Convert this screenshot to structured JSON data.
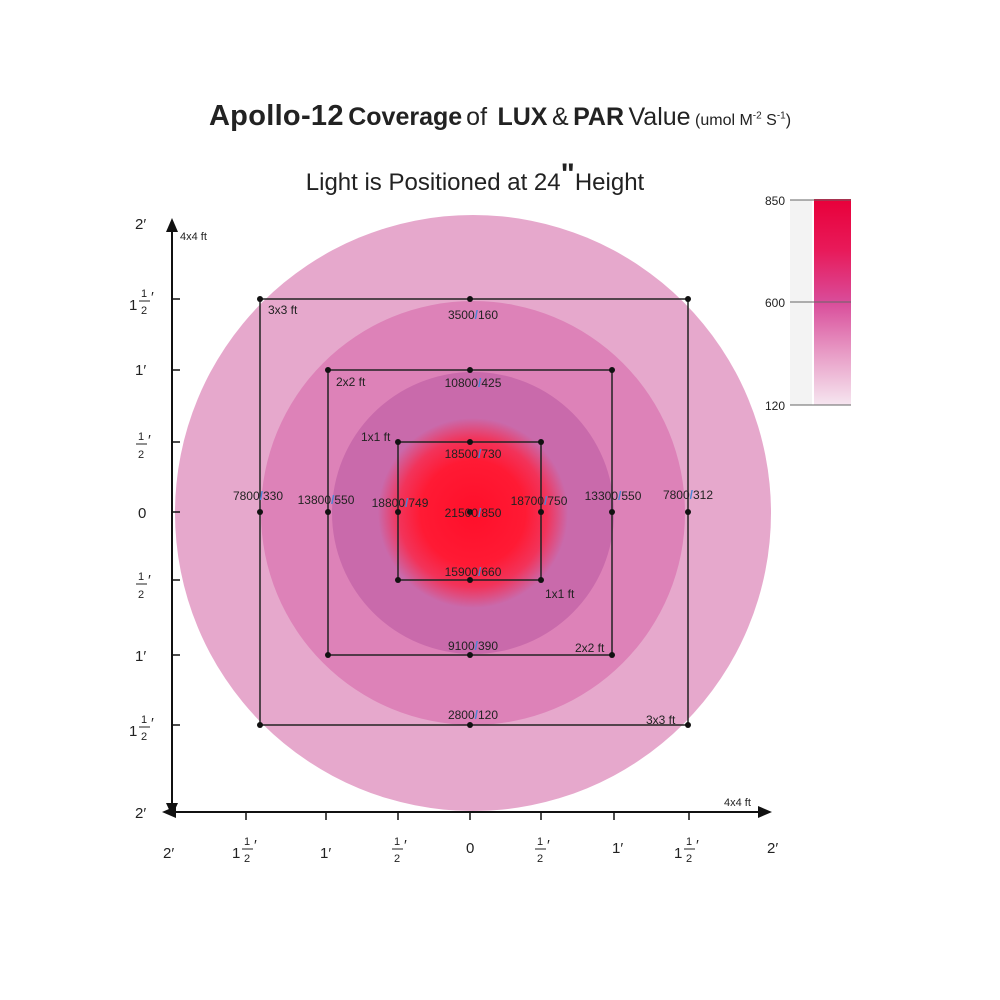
{
  "title": {
    "model": "Apollo-12",
    "coverage": "Coverage",
    "of": "of",
    "lux": "LUX",
    "amp": "&",
    "par": "PAR",
    "value": "Value",
    "unit_open": "(umol  M",
    "unit_exp1": "-2",
    "unit_s": " S",
    "unit_exp2": "-1",
    "unit_close": ")"
  },
  "subtitle": {
    "prefix": "Light is Positioned at 24",
    "quote": "\"",
    "suffix": "Height"
  },
  "legend": {
    "max_label": "850",
    "mid_label": "600",
    "min_label": "120",
    "colors": [
      "#e8003a",
      "#d94c9a",
      "#f2dcea"
    ]
  },
  "axes": {
    "y_title": "4x4 ft",
    "x_title": "4x4 ft",
    "tick_top": "2′",
    "tick_bottom": "2′",
    "tick_left": "2′",
    "tick_right": "2′",
    "one_half_whole": "1",
    "half_num": "1",
    "half_den": "2",
    "prime": "′",
    "one": "1′",
    "zero": "0"
  },
  "zones": {
    "z3": "3x3 ft",
    "z3b": "3x3 ft",
    "z2": "2x2 ft",
    "z2b": "2x2 ft",
    "z1": "1x1 ft",
    "z1b": "1x1 ft"
  },
  "readings": {
    "top3": {
      "lux": "3500",
      "par": "160"
    },
    "top2": {
      "lux": "10800",
      "par": "425"
    },
    "top1": {
      "lux": "18500",
      "par": "730"
    },
    "center": {
      "lux": "21500",
      "par": "850"
    },
    "bottom1": {
      "lux": "15900",
      "par": "660"
    },
    "bottom2": {
      "lux": "9100",
      "par": "390"
    },
    "bottom3": {
      "lux": "2800",
      "par": "120"
    },
    "left3": {
      "lux": "7800",
      "par": "330"
    },
    "left2": {
      "lux": "13800",
      "par": "550"
    },
    "left1": {
      "lux": "18800",
      "par": "749"
    },
    "right1": {
      "lux": "18700",
      "par": "750"
    },
    "right2": {
      "lux": "13300",
      "par": "550"
    },
    "right3": {
      "lux": "7800",
      "par": "312"
    }
  },
  "colors": {
    "outer": "#e6a8cc",
    "ring2": "#dd82b8",
    "ring1": "#c96aab",
    "core": "#ff1630",
    "slash": "#4a86d8"
  }
}
